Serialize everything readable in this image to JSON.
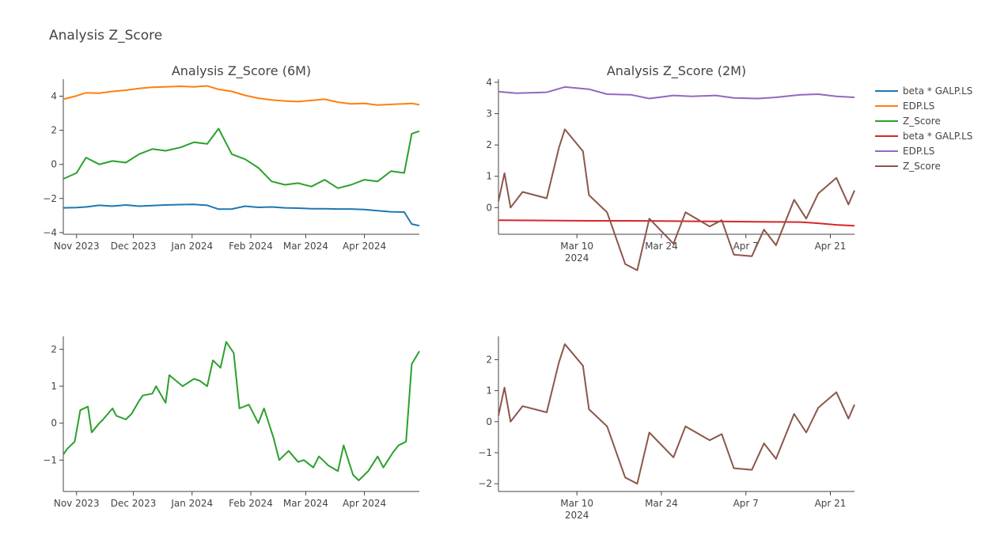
{
  "title": "Analysis Z_Score",
  "legend": [
    {
      "label": "beta * GALP.LS",
      "color": "#1f77b4"
    },
    {
      "label": "EDP.LS",
      "color": "#ff7f0e"
    },
    {
      "label": "Z_Score",
      "color": "#2ca02c"
    },
    {
      "label": "beta * GALP.LS",
      "color": "#d62728"
    },
    {
      "label": "EDP.LS",
      "color": "#9467bd"
    },
    {
      "label": "Z_Score",
      "color": "#8c564b"
    }
  ],
  "chart_data": [
    {
      "type": "line",
      "title": "Analysis Z_Score (6M)",
      "x_ticks": [
        "Nov 2023",
        "Dec 2023",
        "Jan 2024",
        "Feb 2024",
        "Mar 2024",
        "Apr 2024"
      ],
      "y_ticks": [
        "−4",
        "−2",
        "0",
        "2",
        "4"
      ],
      "xlim": [
        "2023-10-25",
        "2024-04-30"
      ],
      "ylim": [
        -4.1,
        5.0
      ],
      "series": [
        {
          "name": "beta * GALP.LS",
          "color": "#1f77b4",
          "x": [
            "2023-10-25",
            "2023-11-01",
            "2023-11-06",
            "2023-11-13",
            "2023-11-20",
            "2023-11-27",
            "2023-12-04",
            "2023-12-11",
            "2023-12-18",
            "2023-12-26",
            "2024-01-02",
            "2024-01-09",
            "2024-01-15",
            "2024-01-22",
            "2024-01-29",
            "2024-02-05",
            "2024-02-12",
            "2024-02-19",
            "2024-02-26",
            "2024-03-04",
            "2024-03-11",
            "2024-03-18",
            "2024-03-25",
            "2024-04-01",
            "2024-04-08",
            "2024-04-15",
            "2024-04-22",
            "2024-04-26",
            "2024-04-30"
          ],
          "y": [
            -2.55,
            -2.53,
            -2.5,
            -2.4,
            -2.45,
            -2.38,
            -2.45,
            -2.42,
            -2.38,
            -2.36,
            -2.35,
            -2.4,
            -2.63,
            -2.62,
            -2.45,
            -2.52,
            -2.5,
            -2.55,
            -2.57,
            -2.6,
            -2.6,
            -2.62,
            -2.62,
            -2.65,
            -2.72,
            -2.78,
            -2.8,
            -3.5,
            -3.6
          ]
        },
        {
          "name": "EDP.LS",
          "color": "#ff7f0e",
          "x": [
            "2023-10-25",
            "2023-11-01",
            "2023-11-06",
            "2023-11-13",
            "2023-11-20",
            "2023-11-27",
            "2023-12-04",
            "2023-12-11",
            "2023-12-18",
            "2023-12-26",
            "2024-01-02",
            "2024-01-09",
            "2024-01-15",
            "2024-01-22",
            "2024-01-29",
            "2024-02-05",
            "2024-02-12",
            "2024-02-19",
            "2024-02-26",
            "2024-03-04",
            "2024-03-11",
            "2024-03-18",
            "2024-03-25",
            "2024-04-01",
            "2024-04-08",
            "2024-04-15",
            "2024-04-22",
            "2024-04-26",
            "2024-04-30"
          ],
          "y": [
            3.82,
            4.02,
            4.2,
            4.18,
            4.28,
            4.35,
            4.45,
            4.52,
            4.55,
            4.58,
            4.55,
            4.6,
            4.4,
            4.28,
            4.05,
            3.88,
            3.78,
            3.72,
            3.68,
            3.75,
            3.82,
            3.65,
            3.55,
            3.58,
            3.48,
            3.52,
            3.55,
            3.58,
            3.5
          ]
        },
        {
          "name": "Z_Score",
          "color": "#2ca02c",
          "x": [
            "2023-10-25",
            "2023-11-01",
            "2023-11-06",
            "2023-11-13",
            "2023-11-20",
            "2023-11-27",
            "2023-12-04",
            "2023-12-11",
            "2023-12-18",
            "2023-12-26",
            "2024-01-02",
            "2024-01-09",
            "2024-01-15",
            "2024-01-22",
            "2024-01-29",
            "2024-02-05",
            "2024-02-12",
            "2024-02-19",
            "2024-02-26",
            "2024-03-04",
            "2024-03-11",
            "2024-03-18",
            "2024-03-25",
            "2024-04-01",
            "2024-04-08",
            "2024-04-15",
            "2024-04-22",
            "2024-04-26",
            "2024-04-30"
          ],
          "y": [
            -0.85,
            -0.5,
            0.4,
            0.0,
            0.2,
            0.1,
            0.6,
            0.9,
            0.8,
            1.0,
            1.3,
            1.2,
            2.1,
            0.6,
            0.3,
            -0.2,
            -1.0,
            -1.2,
            -1.1,
            -1.3,
            -0.9,
            -1.4,
            -1.2,
            -0.9,
            -1.0,
            -0.4,
            -0.5,
            1.8,
            1.95
          ]
        }
      ]
    },
    {
      "type": "line",
      "title": "Analysis Z_Score (2M)",
      "x_ticks": [
        "Mar 10",
        "Mar 24",
        "Apr 7",
        "Apr 21"
      ],
      "x_sublabel": "2024",
      "y_ticks": [
        "0",
        "1",
        "2",
        "3",
        "4"
      ],
      "xlim": [
        "2024-02-26",
        "2024-04-25"
      ],
      "ylim": [
        -0.85,
        4.1
      ],
      "series": [
        {
          "name": "beta * GALP.LS",
          "color": "#d62728",
          "x": [
            "2024-02-26",
            "2024-03-05",
            "2024-03-12",
            "2024-03-19",
            "2024-03-26",
            "2024-04-02",
            "2024-04-09",
            "2024-04-16",
            "2024-04-19",
            "2024-04-22",
            "2024-04-25"
          ],
          "y": [
            -0.4,
            -0.41,
            -0.42,
            -0.42,
            -0.43,
            -0.44,
            -0.45,
            -0.46,
            -0.5,
            -0.55,
            -0.58
          ]
        },
        {
          "name": "EDP.LS",
          "color": "#9467bd",
          "x": [
            "2024-02-26",
            "2024-02-29",
            "2024-03-05",
            "2024-03-08",
            "2024-03-12",
            "2024-03-15",
            "2024-03-19",
            "2024-03-22",
            "2024-03-26",
            "2024-03-29",
            "2024-04-02",
            "2024-04-05",
            "2024-04-09",
            "2024-04-12",
            "2024-04-16",
            "2024-04-19",
            "2024-04-22",
            "2024-04-25"
          ],
          "y": [
            3.7,
            3.65,
            3.68,
            3.85,
            3.78,
            3.62,
            3.6,
            3.48,
            3.58,
            3.55,
            3.58,
            3.5,
            3.48,
            3.52,
            3.6,
            3.62,
            3.55,
            3.52
          ]
        },
        {
          "name": "Z_Score",
          "color": "#8c564b",
          "x": [
            "2024-02-26",
            "2024-02-27",
            "2024-02-28",
            "2024-03-01",
            "2024-03-05",
            "2024-03-07",
            "2024-03-08",
            "2024-03-11",
            "2024-03-12",
            "2024-03-15",
            "2024-03-18",
            "2024-03-20",
            "2024-03-22",
            "2024-03-26",
            "2024-03-28",
            "2024-04-01",
            "2024-04-03",
            "2024-04-05",
            "2024-04-08",
            "2024-04-10",
            "2024-04-12",
            "2024-04-15",
            "2024-04-17",
            "2024-04-19",
            "2024-04-22",
            "2024-04-24",
            "2024-04-25"
          ],
          "y": [
            0.2,
            1.1,
            0.0,
            0.5,
            0.3,
            1.9,
            2.5,
            1.8,
            0.4,
            -0.15,
            -1.8,
            -2.0,
            -0.35,
            -1.15,
            -0.15,
            -0.6,
            -0.4,
            -1.5,
            -1.55,
            -0.7,
            -1.2,
            0.25,
            -0.35,
            0.45,
            0.95,
            0.1,
            0.55
          ]
        }
      ]
    },
    {
      "type": "line",
      "title": "",
      "x_ticks": [
        "Nov 2023",
        "Dec 2023",
        "Jan 2024",
        "Feb 2024",
        "Mar 2024",
        "Apr 2024"
      ],
      "y_ticks": [
        "−1",
        "0",
        "1",
        "2"
      ],
      "xlim": [
        "2023-10-25",
        "2024-04-30"
      ],
      "ylim": [
        -1.85,
        2.35
      ],
      "series": [
        {
          "name": "Z_Score",
          "color": "#2ca02c",
          "x": [
            "2023-10-25",
            "2023-10-27",
            "2023-10-31",
            "2023-11-03",
            "2023-11-07",
            "2023-11-09",
            "2023-11-13",
            "2023-11-15",
            "2023-11-20",
            "2023-11-22",
            "2023-11-27",
            "2023-11-30",
            "2023-12-04",
            "2023-12-06",
            "2023-12-11",
            "2023-12-13",
            "2023-12-18",
            "2023-12-20",
            "2023-12-27",
            "2024-01-02",
            "2024-01-05",
            "2024-01-09",
            "2024-01-12",
            "2024-01-16",
            "2024-01-19",
            "2024-01-23",
            "2024-01-26",
            "2024-01-31",
            "2024-02-05",
            "2024-02-08",
            "2024-02-13",
            "2024-02-16",
            "2024-02-21",
            "2024-02-26",
            "2024-02-29",
            "2024-03-05",
            "2024-03-08",
            "2024-03-13",
            "2024-03-18",
            "2024-03-21",
            "2024-03-26",
            "2024-03-29",
            "2024-04-03",
            "2024-04-08",
            "2024-04-11",
            "2024-04-16",
            "2024-04-19",
            "2024-04-23",
            "2024-04-26",
            "2024-04-30"
          ],
          "y": [
            -0.85,
            -0.7,
            -0.5,
            0.35,
            0.45,
            -0.25,
            0.0,
            0.1,
            0.4,
            0.2,
            0.1,
            0.25,
            0.6,
            0.75,
            0.8,
            1.0,
            0.55,
            1.3,
            1.0,
            1.2,
            1.15,
            1.0,
            1.7,
            1.5,
            2.2,
            1.9,
            0.4,
            0.5,
            0.0,
            0.4,
            -0.4,
            -1.0,
            -0.75,
            -1.05,
            -1.0,
            -1.2,
            -0.9,
            -1.15,
            -1.3,
            -0.6,
            -1.4,
            -1.55,
            -1.3,
            -0.9,
            -1.2,
            -0.8,
            -0.6,
            -0.5,
            1.6,
            1.95
          ]
        }
      ]
    },
    {
      "type": "line",
      "title": "",
      "x_ticks": [
        "Mar 10",
        "Mar 24",
        "Apr 7",
        "Apr 21"
      ],
      "x_sublabel": "2024",
      "y_ticks": [
        "−2",
        "−1",
        "0",
        "1",
        "2"
      ],
      "xlim": [
        "2024-02-26",
        "2024-04-25"
      ],
      "ylim": [
        -2.25,
        2.75
      ],
      "series": [
        {
          "name": "Z_Score",
          "color": "#8c564b",
          "x": [
            "2024-02-26",
            "2024-02-27",
            "2024-02-28",
            "2024-03-01",
            "2024-03-05",
            "2024-03-07",
            "2024-03-08",
            "2024-03-11",
            "2024-03-12",
            "2024-03-15",
            "2024-03-18",
            "2024-03-20",
            "2024-03-22",
            "2024-03-26",
            "2024-03-28",
            "2024-04-01",
            "2024-04-03",
            "2024-04-05",
            "2024-04-08",
            "2024-04-10",
            "2024-04-12",
            "2024-04-15",
            "2024-04-17",
            "2024-04-19",
            "2024-04-22",
            "2024-04-24",
            "2024-04-25"
          ],
          "y": [
            0.2,
            1.1,
            0.0,
            0.5,
            0.3,
            1.9,
            2.5,
            1.8,
            0.4,
            -0.15,
            -1.8,
            -2.0,
            -0.35,
            -1.15,
            -0.15,
            -0.6,
            -0.4,
            -1.5,
            -1.55,
            -0.7,
            -1.2,
            0.25,
            -0.35,
            0.45,
            0.95,
            0.1,
            0.55
          ]
        }
      ]
    }
  ]
}
